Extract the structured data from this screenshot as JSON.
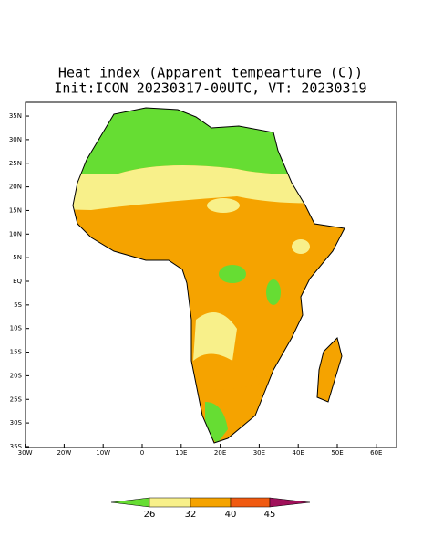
{
  "title": "Heat index (Apparent tempearture (C))",
  "subtitle": "Init:ICON 20230317-00UTC, VT: 20230319",
  "lat_ticks": [
    {
      "value": 35,
      "label": "35N"
    },
    {
      "value": 30,
      "label": "30N"
    },
    {
      "value": 25,
      "label": "25N"
    },
    {
      "value": 20,
      "label": "20N"
    },
    {
      "value": 15,
      "label": "15N"
    },
    {
      "value": 10,
      "label": "10N"
    },
    {
      "value": 5,
      "label": "5N"
    },
    {
      "value": 0,
      "label": "EQ"
    },
    {
      "value": -5,
      "label": "5S"
    },
    {
      "value": -10,
      "label": "10S"
    },
    {
      "value": -15,
      "label": "15S"
    },
    {
      "value": -20,
      "label": "20S"
    },
    {
      "value": -25,
      "label": "25S"
    },
    {
      "value": -30,
      "label": "30S"
    },
    {
      "value": -35,
      "label": "35S"
    }
  ],
  "lon_ticks": [
    {
      "value": -30,
      "label": "30W"
    },
    {
      "value": -20,
      "label": "20W"
    },
    {
      "value": -10,
      "label": "10W"
    },
    {
      "value": 0,
      "label": "0"
    },
    {
      "value": 10,
      "label": "10E"
    },
    {
      "value": 20,
      "label": "20E"
    },
    {
      "value": 30,
      "label": "30E"
    },
    {
      "value": 40,
      "label": "40E"
    },
    {
      "value": 50,
      "label": "50E"
    },
    {
      "value": 60,
      "label": "60E"
    }
  ],
  "colorbar_ticks": [
    26,
    32,
    40,
    45
  ]
}
